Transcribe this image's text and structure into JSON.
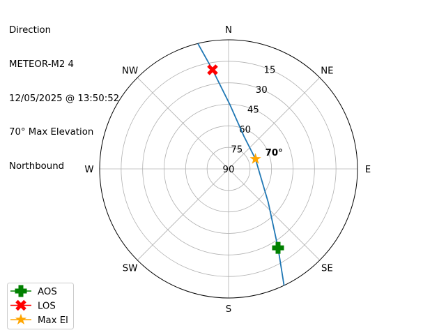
{
  "title_lines": [
    "Direction",
    "METEOR-M2 4",
    "12/05/2025 @ 13:50:52",
    "70° Max Elevation",
    "Northbound"
  ],
  "chart_data": {
    "type": "polar",
    "theta_direction": "clockwise",
    "theta_zero": "N",
    "direction_labels": [
      "N",
      "NE",
      "E",
      "SE",
      "S",
      "SW",
      "W",
      "NW"
    ],
    "radial_ticks": [
      15,
      30,
      45,
      60,
      75,
      90
    ],
    "radial_tick_labels": [
      "15",
      "30",
      "45",
      "60",
      "75",
      "90"
    ],
    "radial_axis": "elevation (90 at centre, 0 at edge)",
    "grid": true,
    "track": {
      "color": "#1f77b4",
      "points": [
        {
          "az": 346.2,
          "el": 0
        },
        {
          "az": 350.8,
          "el": 20
        },
        {
          "az": 1.2,
          "el": 45.2
        },
        {
          "az": 25.1,
          "el": 64.8
        },
        {
          "az": 69.8,
          "el": 70
        },
        {
          "az": 130.1,
          "el": 53.8
        },
        {
          "az": 147.9,
          "el": 25
        },
        {
          "az": 154.5,
          "el": 0
        }
      ]
    },
    "markers": [
      {
        "name": "AOS",
        "az": 147.9,
        "el": 25,
        "color": "#008000",
        "symbol": "plus"
      },
      {
        "name": "LOS",
        "az": 350.8,
        "el": 20,
        "color": "#ff0000",
        "symbol": "x"
      },
      {
        "name": "Max El",
        "az": 69.8,
        "el": 70,
        "color": "#ffa500",
        "symbol": "star"
      }
    ],
    "annotations": [
      {
        "text": "70°",
        "az": 69.8,
        "el": 70
      }
    ],
    "legend": {
      "placement": "bottom-left",
      "entries": [
        "AOS",
        "LOS",
        "Max El"
      ]
    }
  }
}
